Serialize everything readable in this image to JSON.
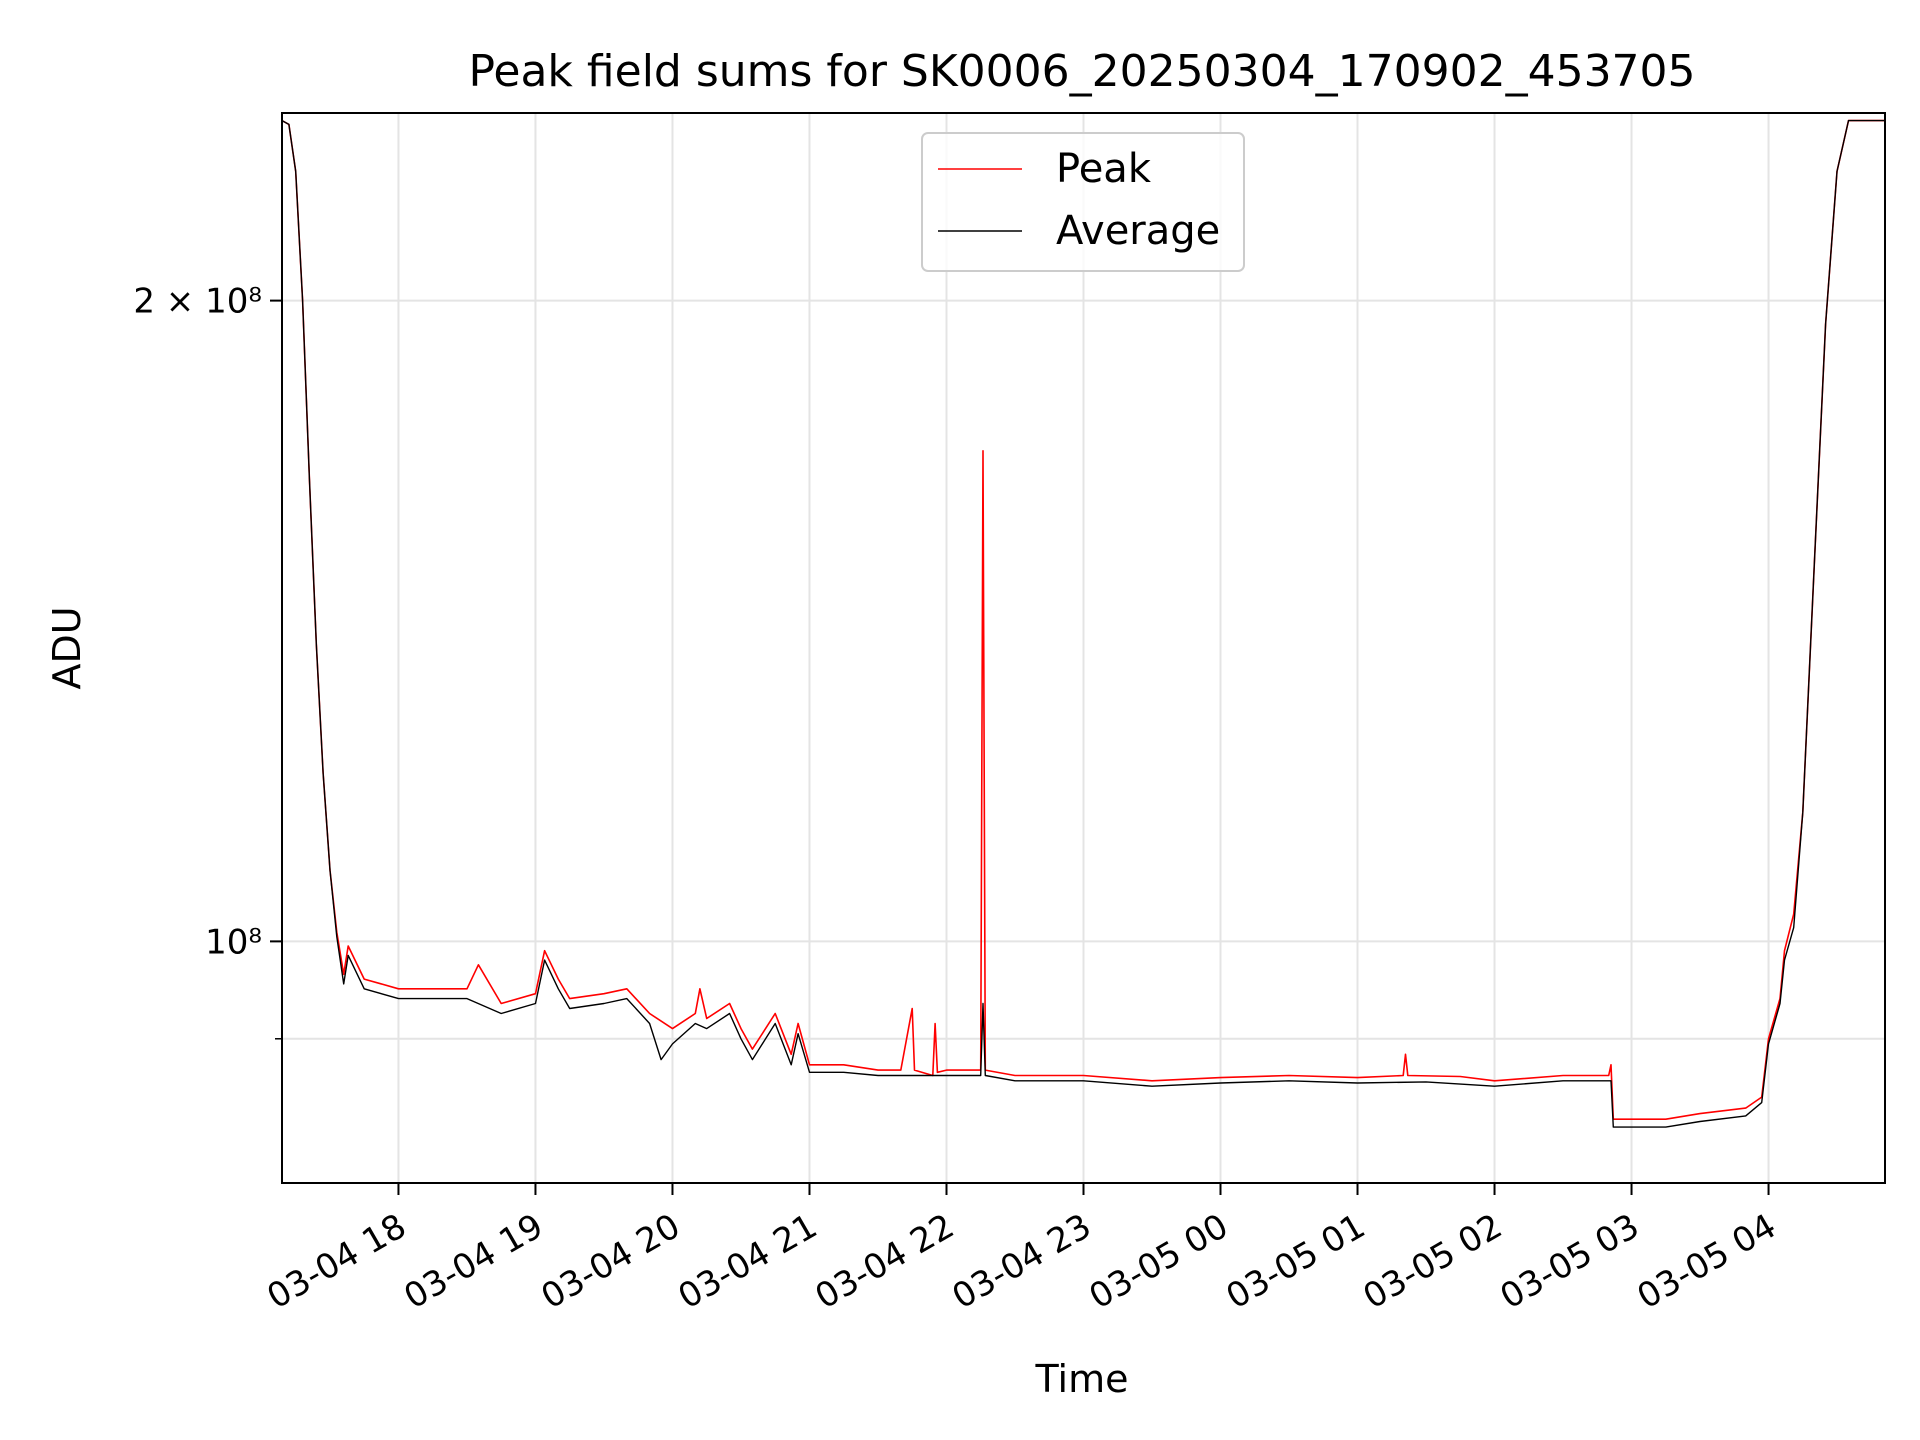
{
  "chart_data": {
    "type": "line",
    "title": "Peak field sums for SK0006_20250304_170902_453705",
    "xlabel": "Time",
    "ylabel": "ADU",
    "y_scale": "log",
    "ylim": [
      77000000,
      245000000
    ],
    "xlim": [
      "2025-03-04 17:09",
      "2025-03-05 04:51"
    ],
    "grid": true,
    "legend_position": "upper center",
    "x_ticks": [
      {
        "t": "2025-03-04 18:00",
        "label": "03-04 18"
      },
      {
        "t": "2025-03-04 19:00",
        "label": "03-04 19"
      },
      {
        "t": "2025-03-04 20:00",
        "label": "03-04 20"
      },
      {
        "t": "2025-03-04 21:00",
        "label": "03-04 21"
      },
      {
        "t": "2025-03-04 22:00",
        "label": "03-04 22"
      },
      {
        "t": "2025-03-04 23:00",
        "label": "03-04 23"
      },
      {
        "t": "2025-03-05 00:00",
        "label": "03-05 00"
      },
      {
        "t": "2025-03-05 01:00",
        "label": "03-05 01"
      },
      {
        "t": "2025-03-05 02:00",
        "label": "03-05 02"
      },
      {
        "t": "2025-03-05 03:00",
        "label": "03-05 03"
      },
      {
        "t": "2025-03-05 04:00",
        "label": "03-05 04"
      }
    ],
    "y_ticks": [
      {
        "v": 100000000,
        "label": "10⁸"
      },
      {
        "v": 200000000,
        "label": "2 × 10⁸"
      }
    ],
    "y_minor_gridlines": [
      90000000
    ],
    "series": [
      {
        "name": "Peak",
        "color": "#ff0000",
        "points": [
          [
            "2025-03-04 17:09",
            243000000
          ],
          [
            "2025-03-04 17:12",
            242000000
          ],
          [
            "2025-03-04 17:15",
            230000000
          ],
          [
            "2025-03-04 17:18",
            200000000
          ],
          [
            "2025-03-04 17:21",
            165000000
          ],
          [
            "2025-03-04 17:24",
            138000000
          ],
          [
            "2025-03-04 17:27",
            120000000
          ],
          [
            "2025-03-04 17:30",
            108000000
          ],
          [
            "2025-03-04 17:33",
            101000000
          ],
          [
            "2025-03-04 17:36",
            96500000
          ],
          [
            "2025-03-04 17:38",
            99500000
          ],
          [
            "2025-03-04 17:45",
            96000000
          ],
          [
            "2025-03-04 18:00",
            95000000
          ],
          [
            "2025-03-04 18:15",
            95000000
          ],
          [
            "2025-03-04 18:30",
            95000000
          ],
          [
            "2025-03-04 18:35",
            97500000
          ],
          [
            "2025-03-04 18:45",
            93500000
          ],
          [
            "2025-03-04 19:00",
            94500000
          ],
          [
            "2025-03-04 19:04",
            99000000
          ],
          [
            "2025-03-04 19:10",
            96000000
          ],
          [
            "2025-03-04 19:15",
            94000000
          ],
          [
            "2025-03-04 19:30",
            94500000
          ],
          [
            "2025-03-04 19:40",
            95000000
          ],
          [
            "2025-03-04 19:50",
            92500000
          ],
          [
            "2025-03-04 20:00",
            91000000
          ],
          [
            "2025-03-04 20:10",
            92500000
          ],
          [
            "2025-03-04 20:12",
            95000000
          ],
          [
            "2025-03-04 20:15",
            92000000
          ],
          [
            "2025-03-04 20:25",
            93500000
          ],
          [
            "2025-03-04 20:30",
            91000000
          ],
          [
            "2025-03-04 20:35",
            89000000
          ],
          [
            "2025-03-04 20:45",
            92500000
          ],
          [
            "2025-03-04 20:52",
            88500000
          ],
          [
            "2025-03-04 20:55",
            91500000
          ],
          [
            "2025-03-04 21:00",
            87500000
          ],
          [
            "2025-03-04 21:15",
            87500000
          ],
          [
            "2025-03-04 21:30",
            87000000
          ],
          [
            "2025-03-04 21:40",
            87000000
          ],
          [
            "2025-03-04 21:45",
            93000000
          ],
          [
            "2025-03-04 21:46",
            87000000
          ],
          [
            "2025-03-04 21:54",
            86500000
          ],
          [
            "2025-03-04 21:55",
            91500000
          ],
          [
            "2025-03-04 21:56",
            86800000
          ],
          [
            "2025-03-04 22:00",
            87000000
          ],
          [
            "2025-03-04 22:15",
            87000000
          ],
          [
            "2025-03-04 22:16",
            170000000
          ],
          [
            "2025-03-04 22:17",
            87000000
          ],
          [
            "2025-03-04 22:30",
            86500000
          ],
          [
            "2025-03-04 23:00",
            86500000
          ],
          [
            "2025-03-04 23:30",
            86000000
          ],
          [
            "2025-03-05 00:00",
            86300000
          ],
          [
            "2025-03-05 00:30",
            86500000
          ],
          [
            "2025-03-05 01:00",
            86300000
          ],
          [
            "2025-03-05 01:20",
            86500000
          ],
          [
            "2025-03-05 01:21",
            88500000
          ],
          [
            "2025-03-05 01:22",
            86500000
          ],
          [
            "2025-03-05 01:45",
            86400000
          ],
          [
            "2025-03-05 02:00",
            86000000
          ],
          [
            "2025-03-05 02:30",
            86500000
          ],
          [
            "2025-03-05 02:50",
            86500000
          ],
          [
            "2025-03-05 02:51",
            87500000
          ],
          [
            "2025-03-05 02:52",
            82500000
          ],
          [
            "2025-03-05 03:15",
            82500000
          ],
          [
            "2025-03-05 03:30",
            83000000
          ],
          [
            "2025-03-05 03:50",
            83500000
          ],
          [
            "2025-03-05 03:57",
            84500000
          ],
          [
            "2025-03-05 04:00",
            90000000
          ],
          [
            "2025-03-05 04:05",
            94000000
          ],
          [
            "2025-03-05 04:07",
            99000000
          ],
          [
            "2025-03-05 04:11",
            103000000
          ],
          [
            "2025-03-05 04:15",
            115000000
          ],
          [
            "2025-03-05 04:20",
            150000000
          ],
          [
            "2025-03-05 04:25",
            195000000
          ],
          [
            "2025-03-05 04:30",
            230000000
          ],
          [
            "2025-03-05 04:35",
            243000000
          ],
          [
            "2025-03-05 04:51",
            243000000
          ]
        ]
      },
      {
        "name": "Average",
        "color": "#000000",
        "points": [
          [
            "2025-03-04 17:09",
            243000000
          ],
          [
            "2025-03-04 17:12",
            242000000
          ],
          [
            "2025-03-04 17:15",
            230000000
          ],
          [
            "2025-03-04 17:18",
            200000000
          ],
          [
            "2025-03-04 17:21",
            165000000
          ],
          [
            "2025-03-04 17:24",
            138000000
          ],
          [
            "2025-03-04 17:27",
            120000000
          ],
          [
            "2025-03-04 17:30",
            108000000
          ],
          [
            "2025-03-04 17:33",
            100500000
          ],
          [
            "2025-03-04 17:36",
            95500000
          ],
          [
            "2025-03-04 17:38",
            98500000
          ],
          [
            "2025-03-04 17:45",
            95000000
          ],
          [
            "2025-03-04 18:00",
            94000000
          ],
          [
            "2025-03-04 18:15",
            94000000
          ],
          [
            "2025-03-04 18:30",
            94000000
          ],
          [
            "2025-03-04 18:45",
            92500000
          ],
          [
            "2025-03-04 19:00",
            93500000
          ],
          [
            "2025-03-04 19:04",
            98000000
          ],
          [
            "2025-03-04 19:10",
            95000000
          ],
          [
            "2025-03-04 19:15",
            93000000
          ],
          [
            "2025-03-04 19:30",
            93500000
          ],
          [
            "2025-03-04 19:40",
            94000000
          ],
          [
            "2025-03-04 19:50",
            91500000
          ],
          [
            "2025-03-04 19:55",
            88000000
          ],
          [
            "2025-03-04 20:00",
            89500000
          ],
          [
            "2025-03-04 20:10",
            91500000
          ],
          [
            "2025-03-04 20:15",
            91000000
          ],
          [
            "2025-03-04 20:25",
            92500000
          ],
          [
            "2025-03-04 20:30",
            90000000
          ],
          [
            "2025-03-04 20:35",
            88000000
          ],
          [
            "2025-03-04 20:45",
            91500000
          ],
          [
            "2025-03-04 20:52",
            87500000
          ],
          [
            "2025-03-04 20:55",
            90500000
          ],
          [
            "2025-03-04 21:00",
            86800000
          ],
          [
            "2025-03-04 21:15",
            86800000
          ],
          [
            "2025-03-04 21:30",
            86500000
          ],
          [
            "2025-03-04 21:45",
            86500000
          ],
          [
            "2025-03-04 22:00",
            86500000
          ],
          [
            "2025-03-04 22:15",
            86500000
          ],
          [
            "2025-03-04 22:16",
            93500000
          ],
          [
            "2025-03-04 22:17",
            86500000
          ],
          [
            "2025-03-04 22:30",
            86000000
          ],
          [
            "2025-03-04 23:00",
            86000000
          ],
          [
            "2025-03-04 23:30",
            85500000
          ],
          [
            "2025-03-05 00:00",
            85800000
          ],
          [
            "2025-03-05 00:30",
            86000000
          ],
          [
            "2025-03-05 01:00",
            85800000
          ],
          [
            "2025-03-05 01:30",
            85900000
          ],
          [
            "2025-03-05 02:00",
            85500000
          ],
          [
            "2025-03-05 02:30",
            86000000
          ],
          [
            "2025-03-05 02:51",
            86000000
          ],
          [
            "2025-03-05 02:52",
            81800000
          ],
          [
            "2025-03-05 03:15",
            81800000
          ],
          [
            "2025-03-05 03:30",
            82300000
          ],
          [
            "2025-03-05 03:50",
            82800000
          ],
          [
            "2025-03-05 03:57",
            84000000
          ],
          [
            "2025-03-05 04:00",
            89500000
          ],
          [
            "2025-03-05 04:05",
            93500000
          ],
          [
            "2025-03-05 04:07",
            98000000
          ],
          [
            "2025-03-05 04:11",
            101500000
          ],
          [
            "2025-03-05 04:15",
            115000000
          ],
          [
            "2025-03-05 04:20",
            150000000
          ],
          [
            "2025-03-05 04:25",
            195000000
          ],
          [
            "2025-03-05 04:30",
            230000000
          ],
          [
            "2025-03-05 04:35",
            243000000
          ],
          [
            "2025-03-05 04:51",
            243000000
          ]
        ]
      }
    ]
  }
}
